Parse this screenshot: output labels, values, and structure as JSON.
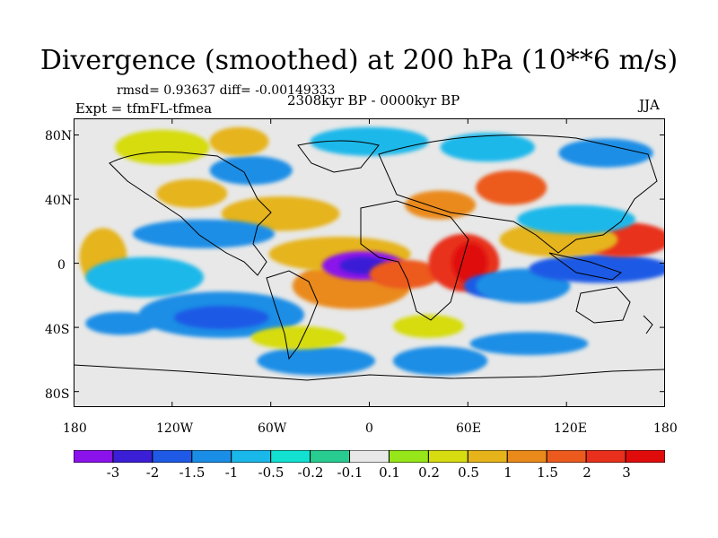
{
  "title": "Divergence (smoothed) at 200 hPa (10**6 m/s)",
  "stats_text": "rmsd= 0.93637 diff= -0.00149333",
  "experiment_text": "Expt = tfmFL-tfmea",
  "period_text": "2308kyr BP - 0000kyr BP",
  "season_text": "JJA",
  "lat_labels": [
    "80N",
    "40N",
    "0",
    "40S",
    "80S"
  ],
  "lon_labels": [
    "180",
    "120W",
    "60W",
    "0",
    "60E",
    "120E",
    "180"
  ],
  "colorbar": {
    "labels": [
      "-3",
      "-2",
      "-1.5",
      "-1",
      "-0.5",
      "-0.2",
      "-0.1",
      "0.1",
      "0.2",
      "0.5",
      "1",
      "1.5",
      "2",
      "3"
    ],
    "colors": [
      "#8b12ea",
      "#3a1fd6",
      "#1e5ae6",
      "#1a8ee6",
      "#1ab8ea",
      "#12e0d0",
      "#28cc90",
      "#e8e8e8",
      "#96e61a",
      "#d6dc10",
      "#e6b41a",
      "#ea8a1a",
      "#ec5a1e",
      "#e8301c",
      "#e00c0c"
    ]
  }
}
